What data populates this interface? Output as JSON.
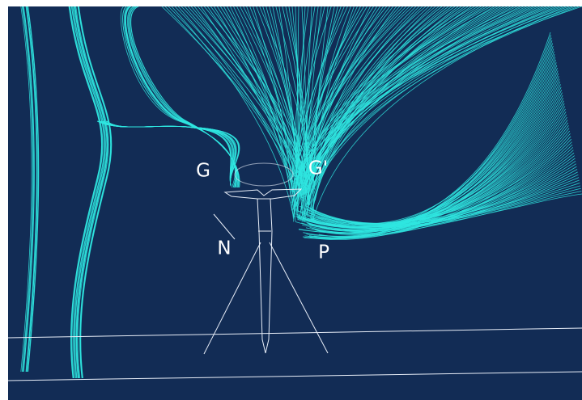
{
  "labels": {
    "g": "G",
    "g_prime": "G'",
    "n": "N",
    "p": "P"
  }
}
